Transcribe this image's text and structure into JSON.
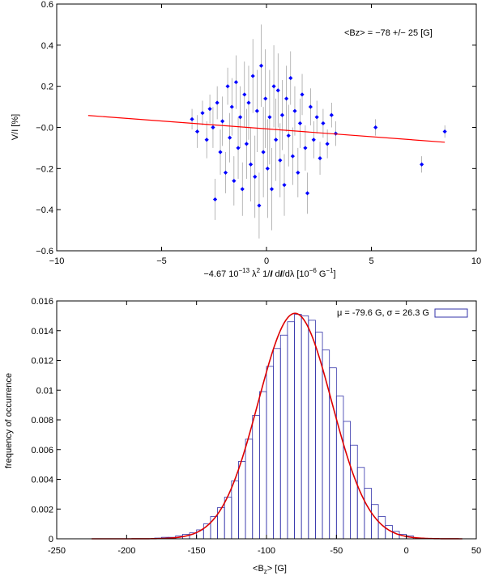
{
  "chart_data": [
    {
      "type": "scatter",
      "annotation": "<Bz> =  −78 +/−  25 [G]",
      "xlabel": {
        "main": "−4.67 10",
        "exp1": "−13",
        "lam": " λ",
        "exp2": "2",
        "rest": " 1/",
        "I1": "I",
        "rest2": " d",
        "I2": "I",
        "rest3": "/dλ [10",
        "exp3": "−6",
        "rest4": " G",
        "exp4": "−1",
        "end": "]"
      },
      "ylabel": "V/I [%]",
      "xlim": [
        -10,
        10
      ],
      "ylim": [
        -0.6,
        0.6
      ],
      "xticks": [
        -10,
        -5,
        0,
        5,
        10
      ],
      "xtick_labels": [
        "−10",
        "−5",
        "0",
        "5",
        "10"
      ],
      "yticks": [
        -0.6,
        -0.4,
        -0.2,
        0.0,
        0.2,
        0.4,
        0.6
      ],
      "ytick_labels": [
        "−0.6",
        "−0.4",
        "−0.2",
        "−0.0",
        "0.2",
        "0.4",
        "0.6"
      ],
      "point_color": "#0000ff",
      "errorbar_color": "#888888",
      "fit_color": "#ff0000",
      "fit_line": {
        "x": [
          -8.5,
          8.5
        ],
        "y": [
          0.058,
          -0.072
        ]
      },
      "points": [
        {
          "x": -3.55,
          "y": 0.04,
          "e": 0.05
        },
        {
          "x": -3.3,
          "y": -0.02,
          "e": 0.08
        },
        {
          "x": -3.05,
          "y": 0.07,
          "e": 0.06
        },
        {
          "x": -2.85,
          "y": -0.06,
          "e": 0.09
        },
        {
          "x": -2.7,
          "y": 0.09,
          "e": 0.07
        },
        {
          "x": -2.55,
          "y": 0.0,
          "e": 0.1
        },
        {
          "x": -2.45,
          "y": -0.35,
          "e": 0.1
        },
        {
          "x": -2.35,
          "y": 0.12,
          "e": 0.08
        },
        {
          "x": -2.2,
          "y": -0.12,
          "e": 0.11
        },
        {
          "x": -2.1,
          "y": 0.03,
          "e": 0.12
        },
        {
          "x": -1.95,
          "y": -0.22,
          "e": 0.1
        },
        {
          "x": -1.85,
          "y": 0.2,
          "e": 0.09
        },
        {
          "x": -1.75,
          "y": -0.05,
          "e": 0.12
        },
        {
          "x": -1.65,
          "y": 0.1,
          "e": 0.14
        },
        {
          "x": -1.55,
          "y": -0.26,
          "e": 0.12
        },
        {
          "x": -1.45,
          "y": 0.22,
          "e": 0.13
        },
        {
          "x": -1.35,
          "y": -0.1,
          "e": 0.15
        },
        {
          "x": -1.25,
          "y": 0.05,
          "e": 0.15
        },
        {
          "x": -1.15,
          "y": -0.3,
          "e": 0.13
        },
        {
          "x": -1.05,
          "y": 0.16,
          "e": 0.16
        },
        {
          "x": -0.95,
          "y": -0.08,
          "e": 0.17
        },
        {
          "x": -0.85,
          "y": 0.12,
          "e": 0.18
        },
        {
          "x": -0.75,
          "y": -0.18,
          "e": 0.18
        },
        {
          "x": -0.65,
          "y": 0.25,
          "e": 0.18
        },
        {
          "x": -0.55,
          "y": -0.24,
          "e": 0.2
        },
        {
          "x": -0.45,
          "y": 0.08,
          "e": 0.2
        },
        {
          "x": -0.35,
          "y": -0.38,
          "e": 0.16
        },
        {
          "x": -0.25,
          "y": 0.3,
          "e": 0.2
        },
        {
          "x": -0.15,
          "y": -0.12,
          "e": 0.22
        },
        {
          "x": -0.05,
          "y": 0.14,
          "e": 0.24
        },
        {
          "x": 0.05,
          "y": -0.2,
          "e": 0.24
        },
        {
          "x": 0.15,
          "y": 0.05,
          "e": 0.23
        },
        {
          "x": 0.25,
          "y": -0.3,
          "e": 0.2
        },
        {
          "x": 0.35,
          "y": 0.2,
          "e": 0.2
        },
        {
          "x": 0.45,
          "y": -0.06,
          "e": 0.2
        },
        {
          "x": 0.55,
          "y": 0.18,
          "e": 0.18
        },
        {
          "x": 0.65,
          "y": -0.16,
          "e": 0.18
        },
        {
          "x": 0.75,
          "y": 0.06,
          "e": 0.17
        },
        {
          "x": 0.85,
          "y": -0.28,
          "e": 0.15
        },
        {
          "x": 0.95,
          "y": 0.14,
          "e": 0.16
        },
        {
          "x": 1.05,
          "y": -0.04,
          "e": 0.15
        },
        {
          "x": 1.15,
          "y": 0.24,
          "e": 0.13
        },
        {
          "x": 1.25,
          "y": -0.14,
          "e": 0.14
        },
        {
          "x": 1.35,
          "y": 0.08,
          "e": 0.12
        },
        {
          "x": 1.5,
          "y": -0.22,
          "e": 0.12
        },
        {
          "x": 1.6,
          "y": 0.02,
          "e": 0.12
        },
        {
          "x": 1.7,
          "y": 0.16,
          "e": 0.1
        },
        {
          "x": 1.85,
          "y": -0.1,
          "e": 0.11
        },
        {
          "x": 1.95,
          "y": -0.32,
          "e": 0.1
        },
        {
          "x": 2.1,
          "y": 0.1,
          "e": 0.09
        },
        {
          "x": 2.25,
          "y": -0.06,
          "e": 0.09
        },
        {
          "x": 2.4,
          "y": 0.05,
          "e": 0.08
        },
        {
          "x": 2.55,
          "y": -0.15,
          "e": 0.08
        },
        {
          "x": 2.7,
          "y": 0.02,
          "e": 0.07
        },
        {
          "x": 2.9,
          "y": -0.08,
          "e": 0.07
        },
        {
          "x": 3.1,
          "y": 0.06,
          "e": 0.06
        },
        {
          "x": 3.3,
          "y": -0.03,
          "e": 0.06
        },
        {
          "x": 5.2,
          "y": 0.0,
          "e": 0.04
        },
        {
          "x": 7.4,
          "y": -0.18,
          "e": 0.04
        },
        {
          "x": 8.5,
          "y": -0.02,
          "e": 0.03
        }
      ]
    },
    {
      "type": "bar",
      "legend": "μ = -79.6 G, σ =  26.3 G",
      "legend_position": "top-right",
      "xlabel": {
        "pre": "<B",
        "sub": "z",
        "post": "> [G]"
      },
      "ylabel": "frequency of occurrence",
      "xlim": [
        -250,
        50
      ],
      "ylim": [
        0,
        0.016
      ],
      "xticks": [
        -250,
        -200,
        -150,
        -100,
        -50,
        0,
        50
      ],
      "xtick_labels": [
        "-250",
        "-200",
        "-150",
        "-100",
        "-50",
        "0",
        "50"
      ],
      "yticks": [
        0,
        0.002,
        0.004,
        0.006,
        0.008,
        0.01,
        0.012,
        0.014,
        0.016
      ],
      "ytick_labels": [
        "0",
        "0.002",
        "0.004",
        "0.006",
        "0.008",
        "0.01",
        "0.012",
        "0.014",
        "0.016"
      ],
      "bar_color": "#3333aa",
      "curve_color": "#dd0000",
      "gauss_fit": {
        "mu": -79.6,
        "sigma": 26.3
      },
      "curve_range": [
        -225,
        40
      ],
      "bin_width": 5,
      "bin_starts": [
        -180,
        -175,
        -170,
        -165,
        -160,
        -155,
        -150,
        -145,
        -140,
        -135,
        -130,
        -125,
        -120,
        -115,
        -110,
        -105,
        -100,
        -95,
        -90,
        -85,
        -80,
        -75,
        -70,
        -65,
        -60,
        -55,
        -50,
        -45,
        -40,
        -35,
        -30,
        -25,
        -20,
        -15,
        -10,
        -5,
        0
      ],
      "frequencies": [
        5e-05,
        0.0001,
        0.0001,
        0.0002,
        0.0003,
        0.0004,
        0.0006,
        0.001,
        0.0015,
        0.0021,
        0.0028,
        0.0039,
        0.0052,
        0.0067,
        0.0083,
        0.0099,
        0.0116,
        0.0128,
        0.0137,
        0.0146,
        0.0151,
        0.015,
        0.0147,
        0.0139,
        0.0127,
        0.0115,
        0.0096,
        0.0079,
        0.0063,
        0.0048,
        0.0034,
        0.0023,
        0.0015,
        0.0009,
        0.0005,
        0.0003,
        0.0002
      ]
    }
  ]
}
